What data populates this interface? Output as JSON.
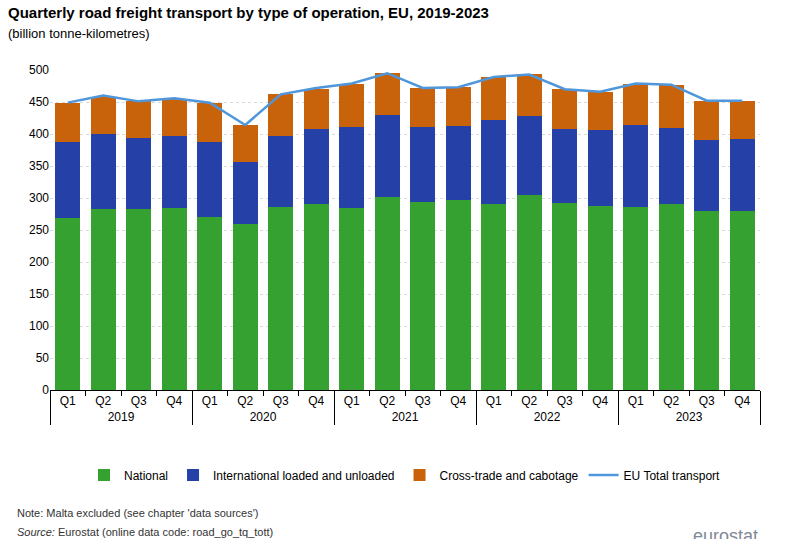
{
  "chart_data": {
    "type": "bar",
    "stacked": true,
    "title": "Quarterly road freight transport by type of operation, EU, 2019-2023",
    "subtitle": "(billion tonne-kilometres)",
    "categories": [
      "Q1",
      "Q2",
      "Q3",
      "Q4",
      "Q1",
      "Q2",
      "Q3",
      "Q4",
      "Q1",
      "Q2",
      "Q3",
      "Q4",
      "Q1",
      "Q2",
      "Q3",
      "Q4",
      "Q1",
      "Q2",
      "Q3",
      "Q4"
    ],
    "category_groups": [
      "2019",
      "2019",
      "2019",
      "2019",
      "2020",
      "2020",
      "2020",
      "2020",
      "2021",
      "2021",
      "2021",
      "2021",
      "2022",
      "2022",
      "2022",
      "2022",
      "2023",
      "2023",
      "2023",
      "2023"
    ],
    "series": [
      {
        "name": "National",
        "type": "bar",
        "color": "#35a131",
        "values": [
          269,
          283,
          283,
          284,
          271,
          259,
          286,
          290,
          284,
          302,
          294,
          297,
          291,
          305,
          292,
          288,
          286,
          290,
          280,
          279
        ]
      },
      {
        "name": "International loaded and unloaded",
        "type": "bar",
        "color": "#2541a8",
        "values": [
          119,
          117,
          110,
          113,
          116,
          97,
          111,
          118,
          127,
          127,
          117,
          115,
          131,
          123,
          116,
          118,
          128,
          120,
          110,
          113
        ]
      },
      {
        "name": "Cross-trade and cabotage",
        "type": "bar",
        "color": "#c8620b",
        "values": [
          60,
          58,
          58,
          57,
          61,
          58,
          65,
          62,
          67,
          66,
          61,
          61,
          67,
          65,
          62,
          60,
          64,
          66,
          61,
          59
        ]
      },
      {
        "name": "EU Total transport",
        "type": "line",
        "color": "#4f97da",
        "values": [
          449,
          460,
          451,
          456,
          449,
          414,
          462,
          472,
          479,
          495,
          472,
          473,
          489,
          493,
          470,
          466,
          479,
          477,
          452,
          452
        ]
      }
    ],
    "ylim": [
      0,
      500
    ],
    "yticks": [
      0,
      50,
      100,
      150,
      200,
      250,
      300,
      350,
      400,
      450,
      500
    ],
    "grid": true,
    "legend": "bottom",
    "notes": [
      "Note: Malta excluded (see chapter 'data sources')"
    ],
    "source": {
      "label": "Source:",
      "text": "Eurostat (online data code: road_go_tq_tott)"
    },
    "logo": "eurostat"
  }
}
